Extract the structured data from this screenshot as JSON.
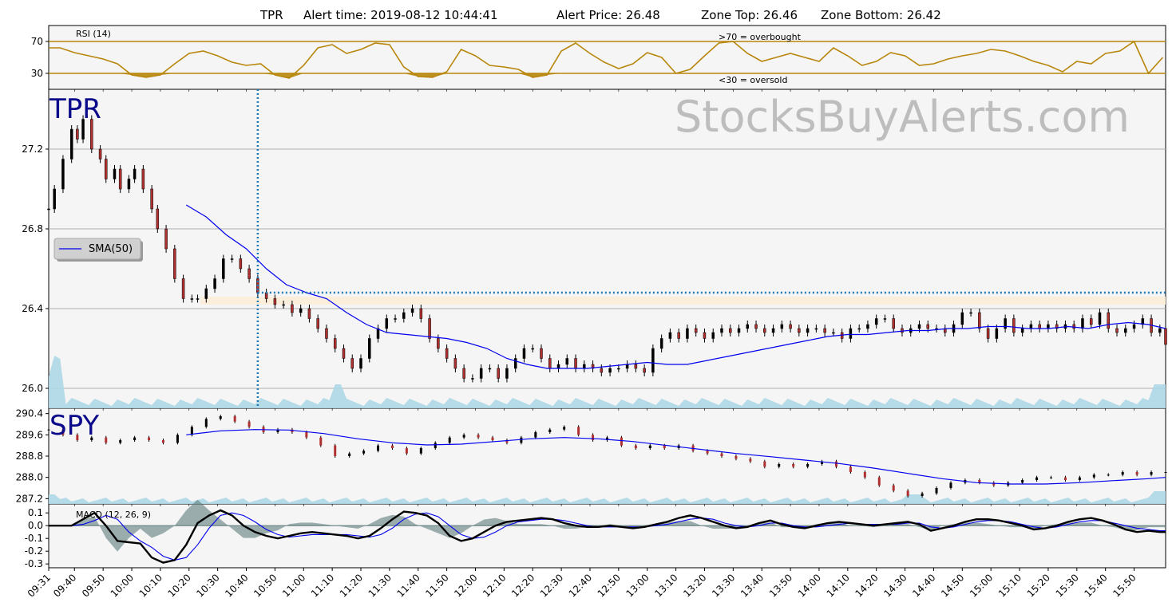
{
  "chart_data": {
    "type": "line",
    "title": {
      "symbol": "TPR",
      "alert_time": "Alert time: 2019-08-12 10:44:41",
      "alert_price": "Alert Price: 26.48",
      "zone_top": "Zone Top: 26.46",
      "zone_bottom": "Zone Bottom: 26.42"
    },
    "watermark": "StocksBuyAlerts.com",
    "x_tick_labels": [
      "09:31",
      "09:40",
      "09:50",
      "10:00",
      "10:10",
      "10:20",
      "10:30",
      "10:40",
      "10:50",
      "11:00",
      "11:10",
      "11:20",
      "11:30",
      "11:40",
      "11:50",
      "12:00",
      "12:10",
      "12:20",
      "12:30",
      "12:40",
      "12:50",
      "13:00",
      "13:10",
      "13:20",
      "13:30",
      "13:40",
      "13:50",
      "14:00",
      "14:10",
      "14:20",
      "14:30",
      "14:40",
      "14:50",
      "15:00",
      "15:10",
      "15:20",
      "15:30",
      "15:40",
      "15:50"
    ],
    "rsi": {
      "label": "RSI (14)",
      "overbought_note": ">70 = overbought",
      "oversold_note": "<30 = oversold",
      "yticks": [
        70,
        30
      ],
      "ylim": [
        10,
        90
      ],
      "levels": [
        70,
        30
      ],
      "color": "#b8860b",
      "x": [
        0,
        4,
        9,
        14,
        19,
        24,
        29,
        34,
        39,
        44,
        49,
        54,
        59,
        64,
        69,
        74,
        79,
        84,
        89,
        94,
        99,
        104,
        109,
        114,
        119,
        124,
        129,
        134,
        139,
        144,
        149,
        154,
        159,
        164,
        169,
        174,
        179,
        184,
        189,
        194,
        199,
        204,
        209,
        214,
        219,
        224,
        229,
        234,
        239,
        244,
        249,
        254,
        259,
        264,
        269,
        274,
        279,
        284,
        289,
        294,
        299,
        304,
        309,
        314,
        319,
        324,
        329,
        334,
        339,
        344,
        349,
        354,
        359,
        364,
        369,
        374,
        379,
        384,
        389
      ],
      "values": [
        62,
        62,
        56,
        52,
        48,
        42,
        28,
        25,
        28,
        42,
        55,
        58,
        52,
        44,
        40,
        42,
        28,
        24,
        40,
        62,
        66,
        55,
        60,
        68,
        66,
        38,
        26,
        25,
        32,
        60,
        52,
        40,
        38,
        35,
        25,
        28,
        58,
        68,
        55,
        44,
        36,
        42,
        56,
        50,
        30,
        35,
        52,
        68,
        70,
        55,
        45,
        50,
        55,
        50,
        45,
        62,
        52,
        40,
        45,
        56,
        52,
        40,
        42,
        48,
        52,
        55,
        60,
        58,
        52,
        45,
        40,
        32,
        45,
        42,
        55,
        58,
        70,
        30,
        50
      ]
    },
    "price": {
      "symbol_label": "TPR",
      "yticks": [
        27.2,
        26.8,
        26.4,
        26.0
      ],
      "ylim": [
        25.9,
        27.5
      ],
      "legend": "SMA(50)",
      "alert_price": 26.48,
      "zone_top": 26.46,
      "zone_bottom": 26.42,
      "alert_x": 73,
      "x": [
        0,
        2,
        5,
        8,
        10,
        12,
        15,
        18,
        20,
        23,
        25,
        28,
        30,
        33,
        36,
        38,
        41,
        44,
        47,
        50,
        52,
        55,
        58,
        61,
        64,
        67,
        70,
        73,
        76,
        79,
        82,
        85,
        88,
        91,
        94,
        97,
        100,
        103,
        106,
        109,
        112,
        115,
        118,
        121,
        124,
        127,
        130,
        133,
        136,
        139,
        142,
        145,
        148,
        151,
        154,
        157,
        160,
        163,
        166,
        169,
        172,
        175,
        178,
        181,
        184,
        187,
        190,
        193,
        196,
        199,
        202,
        205,
        208,
        211,
        214,
        217,
        220,
        223,
        226,
        229,
        232,
        235,
        238,
        241,
        244,
        247,
        250,
        253,
        256,
        259,
        262,
        265,
        268,
        271,
        274,
        277,
        280,
        283,
        286,
        289,
        292,
        295,
        298,
        301,
        304,
        307,
        310,
        313,
        316,
        319,
        322,
        325,
        328,
        331,
        334,
        337,
        340,
        343,
        346,
        349,
        352,
        355,
        358,
        361,
        364,
        367,
        370,
        373,
        376,
        379,
        382,
        385,
        388,
        390
      ],
      "close": [
        26.9,
        27.0,
        27.15,
        27.3,
        27.25,
        27.35,
        27.2,
        27.15,
        27.05,
        27.1,
        27.0,
        27.05,
        27.1,
        27.0,
        26.9,
        26.8,
        26.7,
        26.55,
        26.45,
        26.45,
        26.45,
        26.5,
        26.55,
        26.65,
        26.65,
        26.6,
        26.55,
        26.48,
        26.45,
        26.42,
        26.42,
        26.38,
        26.4,
        26.35,
        26.3,
        26.25,
        26.2,
        26.15,
        26.1,
        26.15,
        26.25,
        26.3,
        26.35,
        26.35,
        26.38,
        26.4,
        26.35,
        26.25,
        26.2,
        26.15,
        26.1,
        26.05,
        26.05,
        26.1,
        26.1,
        26.05,
        26.1,
        26.15,
        26.2,
        26.2,
        26.15,
        26.1,
        26.12,
        26.15,
        26.1,
        26.12,
        26.1,
        26.08,
        26.1,
        26.1,
        26.12,
        26.1,
        26.08,
        26.2,
        26.25,
        26.28,
        26.25,
        26.3,
        26.28,
        26.25,
        26.28,
        26.3,
        26.28,
        26.3,
        26.32,
        26.3,
        26.28,
        26.3,
        26.32,
        26.3,
        26.28,
        26.3,
        26.3,
        26.28,
        26.28,
        26.25,
        26.3,
        26.3,
        26.32,
        26.35,
        26.35,
        26.3,
        26.28,
        26.3,
        26.32,
        26.3,
        26.3,
        26.28,
        26.32,
        26.38,
        26.38,
        26.3,
        26.25,
        26.3,
        26.35,
        26.28,
        26.3,
        26.32,
        26.3,
        26.32,
        26.3,
        26.32,
        26.3,
        26.35,
        26.32,
        26.38,
        26.3,
        26.28,
        26.3,
        26.32,
        26.35,
        26.28,
        26.3,
        26.22
      ],
      "sma_x": [
        48,
        55,
        62,
        69,
        76,
        83,
        90,
        97,
        104,
        111,
        118,
        125,
        132,
        139,
        146,
        153,
        160,
        167,
        174,
        181,
        188,
        195,
        202,
        209,
        216,
        223,
        230,
        237,
        244,
        251,
        258,
        265,
        272,
        279,
        286,
        293,
        300,
        307,
        314,
        321,
        328,
        335,
        342,
        349,
        356,
        363,
        370,
        377,
        384,
        390
      ],
      "sma": [
        26.92,
        26.86,
        26.77,
        26.7,
        26.6,
        26.52,
        26.48,
        26.45,
        26.38,
        26.32,
        26.28,
        26.27,
        26.26,
        26.25,
        26.23,
        26.2,
        26.15,
        26.12,
        26.1,
        26.1,
        26.1,
        26.11,
        26.12,
        26.13,
        26.12,
        26.12,
        26.14,
        26.16,
        26.18,
        26.2,
        26.22,
        26.24,
        26.26,
        26.27,
        26.27,
        26.28,
        26.29,
        26.29,
        26.3,
        26.3,
        26.31,
        26.31,
        26.3,
        26.3,
        26.31,
        26.3,
        26.32,
        26.33,
        26.32,
        26.3
      ]
    },
    "spy": {
      "symbol_label": "SPY",
      "yticks": [
        290.4,
        289.6,
        288.8,
        288.0,
        287.2
      ],
      "ylim": [
        287.0,
        290.6
      ],
      "x": [
        0,
        5,
        10,
        15,
        20,
        25,
        30,
        35,
        40,
        45,
        50,
        55,
        60,
        65,
        70,
        75,
        80,
        85,
        90,
        95,
        100,
        105,
        110,
        115,
        120,
        125,
        130,
        135,
        140,
        145,
        150,
        155,
        160,
        165,
        170,
        175,
        180,
        185,
        190,
        195,
        200,
        205,
        210,
        215,
        220,
        225,
        230,
        235,
        240,
        245,
        250,
        255,
        260,
        265,
        270,
        275,
        280,
        285,
        290,
        295,
        300,
        305,
        310,
        315,
        320,
        325,
        330,
        335,
        340,
        345,
        350,
        355,
        360,
        365,
        370,
        375,
        380,
        385,
        390
      ],
      "close": [
        289.8,
        289.6,
        289.4,
        289.5,
        289.3,
        289.4,
        289.5,
        289.4,
        289.3,
        289.6,
        289.9,
        290.2,
        290.3,
        290.1,
        289.9,
        289.7,
        289.8,
        289.7,
        289.5,
        289.2,
        288.8,
        288.9,
        289.0,
        289.2,
        289.1,
        288.9,
        289.1,
        289.3,
        289.5,
        289.6,
        289.5,
        289.4,
        289.3,
        289.5,
        289.7,
        289.8,
        289.9,
        289.6,
        289.4,
        289.5,
        289.2,
        289.1,
        289.2,
        289.1,
        289.2,
        289.0,
        288.9,
        288.8,
        288.7,
        288.6,
        288.4,
        288.5,
        288.4,
        288.5,
        288.6,
        288.4,
        288.2,
        288.0,
        287.7,
        287.5,
        287.3,
        287.4,
        287.6,
        287.8,
        287.9,
        287.8,
        287.7,
        287.8,
        287.9,
        288.0,
        288.0,
        287.9,
        288.0,
        288.1,
        288.1,
        288.2,
        288.1,
        288.2,
        288.2
      ],
      "sma_x": [
        48,
        60,
        72,
        84,
        96,
        108,
        120,
        132,
        144,
        156,
        168,
        180,
        192,
        204,
        216,
        228,
        240,
        252,
        264,
        276,
        288,
        300,
        312,
        324,
        336,
        348,
        360,
        372,
        384,
        390
      ],
      "sma": [
        289.6,
        289.75,
        289.8,
        289.78,
        289.65,
        289.45,
        289.3,
        289.22,
        289.25,
        289.35,
        289.45,
        289.5,
        289.45,
        289.35,
        289.2,
        289.05,
        288.9,
        288.78,
        288.65,
        288.52,
        288.35,
        288.15,
        287.95,
        287.8,
        287.75,
        287.75,
        287.8,
        287.88,
        287.95,
        288.0
      ]
    },
    "macd": {
      "label": "MACD (12, 26, 9)",
      "yticks": [
        0.1,
        0.0,
        -0.1,
        -0.2,
        -0.3
      ],
      "ylim": [
        -0.33,
        0.17
      ],
      "x": [
        0,
        8,
        12,
        16,
        20,
        24,
        28,
        32,
        36,
        40,
        44,
        48,
        52,
        56,
        60,
        64,
        68,
        72,
        76,
        80,
        84,
        88,
        92,
        96,
        100,
        104,
        108,
        112,
        116,
        120,
        124,
        128,
        132,
        136,
        140,
        144,
        148,
        152,
        156,
        160,
        164,
        168,
        172,
        176,
        180,
        184,
        188,
        192,
        196,
        200,
        204,
        208,
        212,
        216,
        220,
        224,
        228,
        232,
        236,
        240,
        244,
        248,
        252,
        256,
        260,
        264,
        268,
        272,
        276,
        280,
        284,
        288,
        292,
        296,
        300,
        304,
        308,
        312,
        316,
        320,
        324,
        328,
        332,
        336,
        340,
        344,
        348,
        352,
        356,
        360,
        364,
        368,
        372,
        376,
        380,
        384,
        388,
        390
      ],
      "macd": [
        0,
        0,
        0.05,
        0.1,
        0.0,
        -0.12,
        -0.13,
        -0.14,
        -0.25,
        -0.29,
        -0.27,
        -0.15,
        0.02,
        0.08,
        0.12,
        0.08,
        0.0,
        -0.05,
        -0.08,
        -0.1,
        -0.08,
        -0.06,
        -0.05,
        -0.06,
        -0.07,
        -0.08,
        -0.1,
        -0.08,
        -0.02,
        0.05,
        0.11,
        0.1,
        0.08,
        0.02,
        -0.08,
        -0.12,
        -0.1,
        -0.05,
        0.0,
        0.03,
        0.04,
        0.05,
        0.06,
        0.05,
        0.02,
        0.0,
        -0.01,
        -0.01,
        0.0,
        -0.01,
        -0.02,
        -0.01,
        0.01,
        0.03,
        0.06,
        0.08,
        0.06,
        0.03,
        0.0,
        -0.02,
        -0.01,
        0.02,
        0.04,
        0.01,
        -0.01,
        -0.02,
        0.0,
        0.02,
        0.03,
        0.02,
        0.01,
        0.0,
        0.01,
        0.02,
        0.03,
        0.01,
        -0.04,
        -0.02,
        0.0,
        0.03,
        0.05,
        0.05,
        0.04,
        0.02,
        0.0,
        -0.03,
        -0.02,
        0.0,
        0.03,
        0.05,
        0.06,
        0.04,
        0.01,
        -0.03,
        -0.05,
        -0.04,
        -0.05,
        -0.05
      ],
      "signal": [
        0,
        0,
        0.01,
        0.04,
        0.08,
        0.05,
        -0.05,
        -0.12,
        -0.17,
        -0.24,
        -0.27,
        -0.25,
        -0.15,
        -0.02,
        0.08,
        0.1,
        0.08,
        0.03,
        -0.03,
        -0.07,
        -0.09,
        -0.08,
        -0.07,
        -0.07,
        -0.07,
        -0.07,
        -0.08,
        -0.09,
        -0.07,
        -0.02,
        0.05,
        0.09,
        0.1,
        0.07,
        0.0,
        -0.07,
        -0.1,
        -0.09,
        -0.05,
        0.0,
        0.03,
        0.04,
        0.05,
        0.05,
        0.04,
        0.02,
        0.0,
        -0.01,
        -0.01,
        -0.01,
        -0.01,
        -0.01,
        0.0,
        0.01,
        0.03,
        0.05,
        0.06,
        0.05,
        0.02,
        0.0,
        -0.01,
        0.0,
        0.02,
        0.02,
        0.0,
        -0.01,
        -0.01,
        0.0,
        0.01,
        0.02,
        0.01,
        0.01,
        0.01,
        0.01,
        0.02,
        0.02,
        -0.01,
        -0.02,
        -0.01,
        0.01,
        0.03,
        0.04,
        0.04,
        0.03,
        0.01,
        -0.01,
        -0.02,
        -0.01,
        0.01,
        0.03,
        0.04,
        0.04,
        0.02,
        0.0,
        -0.02,
        -0.03,
        -0.04,
        -0.04
      ]
    }
  }
}
